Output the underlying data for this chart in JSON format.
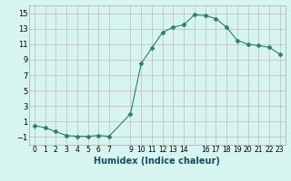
{
  "x": [
    0,
    1,
    2,
    3,
    4,
    5,
    6,
    7,
    9,
    10,
    11,
    12,
    13,
    14,
    15,
    16,
    17,
    18,
    19,
    20,
    21,
    22,
    23
  ],
  "y": [
    0.5,
    0.2,
    -0.3,
    -0.8,
    -0.9,
    -0.9,
    -0.8,
    -0.9,
    2.0,
    8.5,
    10.5,
    12.5,
    13.2,
    13.5,
    14.8,
    14.7,
    14.3,
    13.2,
    11.5,
    11.0,
    10.8,
    10.6,
    9.7
  ],
  "line_color": "#2d7d6e",
  "marker": "D",
  "marker_size": 2.5,
  "bg_color": "#d6f5f0",
  "grid_color": "#c8b8b8",
  "xlabel": "Humidex (Indice chaleur)",
  "xlabel_fontsize": 7,
  "xlim": [
    -0.5,
    23.5
  ],
  "ylim": [
    -2,
    16
  ],
  "yticks": [
    -1,
    1,
    3,
    5,
    7,
    9,
    11,
    13,
    15
  ],
  "xtick_positions": [
    0,
    1,
    2,
    3,
    4,
    5,
    6,
    7,
    9,
    10,
    11,
    12,
    13,
    14,
    15,
    16,
    17,
    18,
    19,
    20,
    21,
    22,
    23
  ],
  "xtick_labels": [
    "0",
    "1",
    "2",
    "3",
    "4",
    "5",
    "6",
    "7",
    "9",
    "10",
    "11",
    "12",
    "13",
    "14",
    "",
    "16",
    "17",
    "18",
    "19",
    "20",
    "21",
    "22",
    "23"
  ]
}
